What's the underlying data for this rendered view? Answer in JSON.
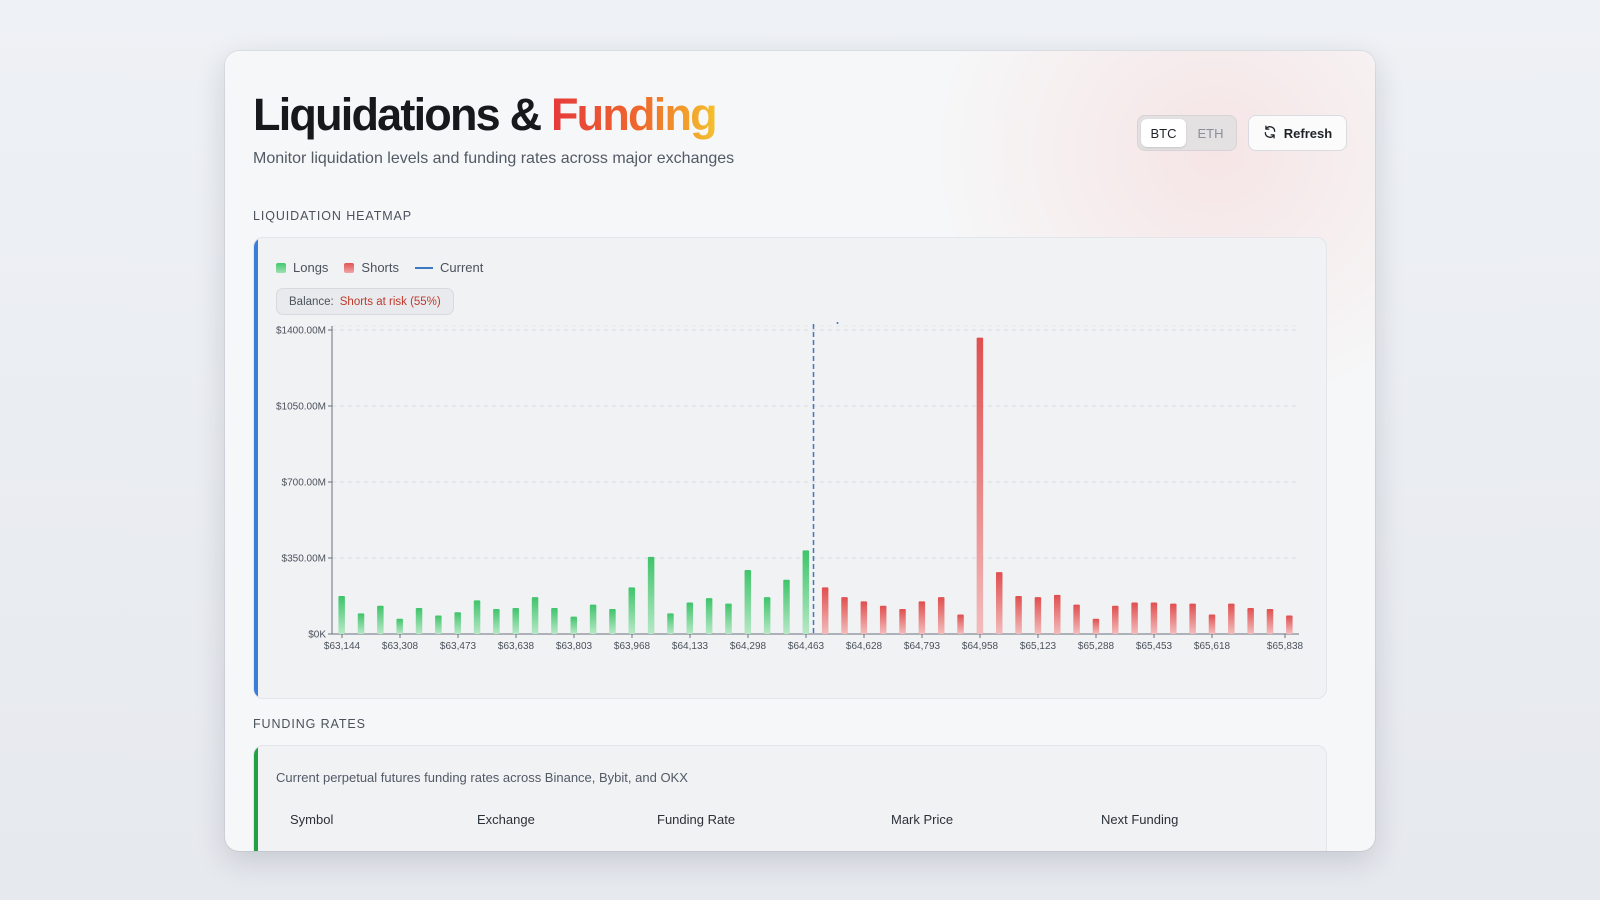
{
  "header": {
    "title_main": "Liquidations &",
    "title_accent": "Funding",
    "subtitle": "Monitor liquidation levels and funding rates across major exchanges"
  },
  "controls": {
    "assets": [
      {
        "label": "BTC",
        "active": true
      },
      {
        "label": "ETH",
        "active": false
      }
    ],
    "refresh_label": "Refresh",
    "refresh_icon": "refresh-icon"
  },
  "heatmap": {
    "section_label": "LIQUIDATION HEATMAP",
    "accent_color": "#3b7ddd",
    "legend": [
      {
        "label": "Longs",
        "color": "#3fc46b"
      },
      {
        "label": "Shorts",
        "color": "#e25a5a"
      },
      {
        "label": "Current",
        "color": "#3b78c4"
      }
    ],
    "balance_label": "Balance:",
    "balance_value": "Shorts at risk (55%)"
  },
  "chart_data": {
    "type": "bar",
    "title": "",
    "xlabel": "",
    "ylabel": "",
    "ylim": [
      0,
      1400
    ],
    "y_unit": "M",
    "y_ticks": [
      {
        "value": 0,
        "label": "$0K"
      },
      {
        "value": 350,
        "label": "$350.00M"
      },
      {
        "value": 700,
        "label": "$700.00M"
      },
      {
        "value": 1050,
        "label": "$1050.00M"
      },
      {
        "value": 1400,
        "label": "$1400.00M"
      }
    ],
    "x_tick_labels": [
      "$63,144",
      "$63,308",
      "$63,473",
      "$63,638",
      "$63,803",
      "$63,968",
      "$64,133",
      "$64,298",
      "$64,463",
      "$64,628",
      "$64,793",
      "$64,958",
      "$65,123",
      "$65,288",
      "$65,453",
      "$65,618",
      "$65,838"
    ],
    "current_price_index": 25,
    "grid": true,
    "series": [
      {
        "name": "Longs",
        "color": "#3fc46b",
        "values": [
          175,
          95,
          130,
          70,
          120,
          85,
          100,
          155,
          115,
          120,
          170,
          120,
          80,
          135,
          115,
          215,
          355,
          95,
          145,
          165,
          140,
          295,
          170,
          250,
          385
        ]
      },
      {
        "name": "Shorts",
        "color": "#e25a5a",
        "values": [
          215,
          170,
          150,
          130,
          115,
          150,
          170,
          90,
          1365,
          285,
          175,
          170,
          180,
          135,
          70,
          130,
          145,
          145,
          140,
          140,
          90,
          140,
          120,
          115,
          85
        ]
      }
    ]
  },
  "funding": {
    "section_label": "FUNDING RATES",
    "accent_color": "#23a046",
    "description": "Current perpetual futures funding rates across Binance, Bybit, and OKX",
    "columns": [
      "Symbol",
      "Exchange",
      "Funding Rate",
      "Mark Price",
      "Next Funding"
    ]
  }
}
